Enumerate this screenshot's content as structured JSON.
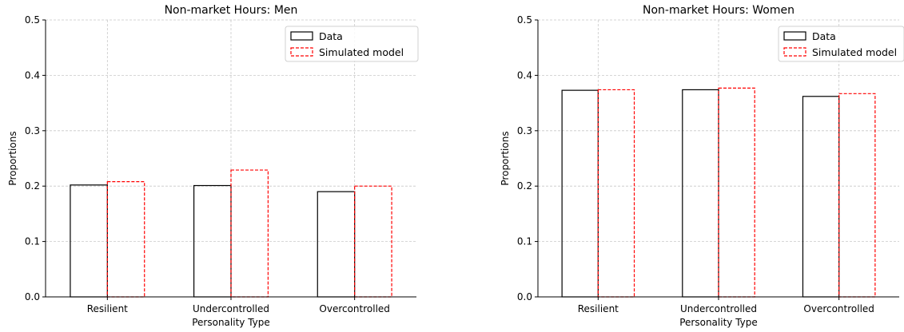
{
  "chart_data": [
    {
      "type": "bar",
      "title": "Non-market Hours: Men",
      "xlabel": "Personality Type",
      "ylabel": "Proportions",
      "categories": [
        "Resilient",
        "Undercontrolled",
        "Overcontrolled"
      ],
      "series": [
        {
          "name": "Data",
          "values": [
            0.202,
            0.201,
            0.19
          ],
          "color": "#000000",
          "style": "solid"
        },
        {
          "name": "Simulated model",
          "values": [
            0.208,
            0.229,
            0.2
          ],
          "color": "#ff0000",
          "style": "dashed"
        }
      ],
      "ylim": [
        0,
        0.5
      ],
      "yticks": [
        "0.0",
        "0.1",
        "0.2",
        "0.3",
        "0.4",
        "0.5"
      ],
      "grid": true,
      "legend_position": "top-right"
    },
    {
      "type": "bar",
      "title": "Non-market Hours: Women",
      "xlabel": "Personality Type",
      "ylabel": "Proportions",
      "categories": [
        "Resilient",
        "Undercontrolled",
        "Overcontrolled"
      ],
      "series": [
        {
          "name": "Data",
          "values": [
            0.373,
            0.374,
            0.362
          ],
          "color": "#000000",
          "style": "solid"
        },
        {
          "name": "Simulated model",
          "values": [
            0.374,
            0.377,
            0.367
          ],
          "color": "#ff0000",
          "style": "dashed"
        }
      ],
      "ylim": [
        0,
        0.5
      ],
      "yticks": [
        "0.0",
        "0.1",
        "0.2",
        "0.3",
        "0.4",
        "0.5"
      ],
      "grid": true,
      "legend_position": "top-right"
    }
  ]
}
